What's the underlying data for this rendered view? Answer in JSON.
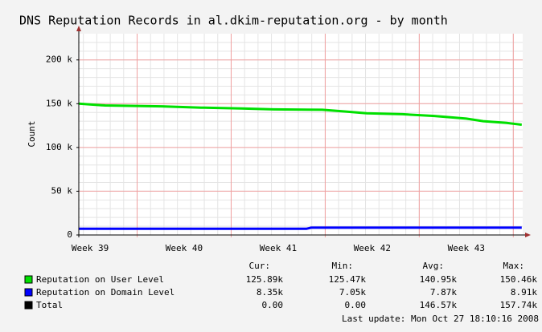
{
  "chart_data": {
    "type": "line",
    "title": "DNS Reputation Records in al.dkim-reputation.org - by month",
    "y_label": "Count",
    "xlim": [
      39.38,
      44.1
    ],
    "xticks": [
      {
        "value": 39.5,
        "label": "Week 39"
      },
      {
        "value": 40.5,
        "label": "Week 40"
      },
      {
        "value": 41.5,
        "label": "Week 41"
      },
      {
        "value": 42.5,
        "label": "Week 42"
      },
      {
        "value": 43.5,
        "label": "Week 43"
      }
    ],
    "ylim": [
      0,
      230000
    ],
    "yticks": [
      {
        "value": 0,
        "label": "0"
      },
      {
        "value": 50000,
        "label": "50 k"
      },
      {
        "value": 100000,
        "label": "100 k"
      },
      {
        "value": 150000,
        "label": "150 k"
      },
      {
        "value": 200000,
        "label": "200 k"
      }
    ],
    "grid": true,
    "stat_headers": [
      "Cur:",
      "Min:",
      "Avg:",
      "Max:"
    ],
    "series": [
      {
        "name": "Reputation on User Level",
        "color": "#00e000",
        "x": [
          39.38,
          39.66,
          40.26,
          40.68,
          41.11,
          41.45,
          41.97,
          42.22,
          42.44,
          42.82,
          43.16,
          43.5,
          43.68,
          43.93,
          44.09
        ],
        "values": [
          150000,
          148000,
          147000,
          145500,
          144500,
          143500,
          143000,
          141000,
          139000,
          138000,
          136000,
          133000,
          130000,
          128000,
          126000
        ],
        "stats": [
          "125.89k",
          "125.47k",
          "140.95k",
          "150.46k"
        ]
      },
      {
        "name": "Reputation on Domain Level",
        "color": "#0000ff",
        "x": [
          39.38,
          41.8,
          41.85,
          44.09
        ],
        "values": [
          7050,
          7050,
          8350,
          8350
        ],
        "stats": [
          "8.35k",
          "7.05k",
          "7.87k",
          "8.91k"
        ]
      }
    ],
    "total": {
      "name": "Total",
      "color": "#000000",
      "stats": [
        "0.00",
        "0.00",
        "146.57k",
        "157.74k"
      ]
    },
    "last_update": "Last update: Mon Oct 27 18:10:16 2008"
  }
}
